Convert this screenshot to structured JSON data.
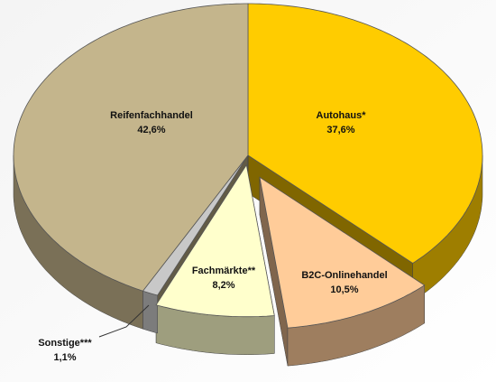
{
  "chart_data": {
    "type": "pie",
    "categories": [
      "Autohaus*",
      "B2C-Onlinehandel",
      "Fachmärkte**",
      "Sonstige***",
      "Reifenfachhandel"
    ],
    "values": [
      37.6,
      10.5,
      8.2,
      1.1,
      42.6
    ],
    "value_labels": [
      "37,6%",
      "10,5%",
      "8,2%",
      "1,1%",
      "42,6%"
    ],
    "colors": [
      "#ffcc00",
      "#ffcc99",
      "#ffffcc",
      "#c8c8c8",
      "#c4b58c"
    ],
    "exploded": [
      false,
      true,
      true,
      false,
      false
    ]
  }
}
